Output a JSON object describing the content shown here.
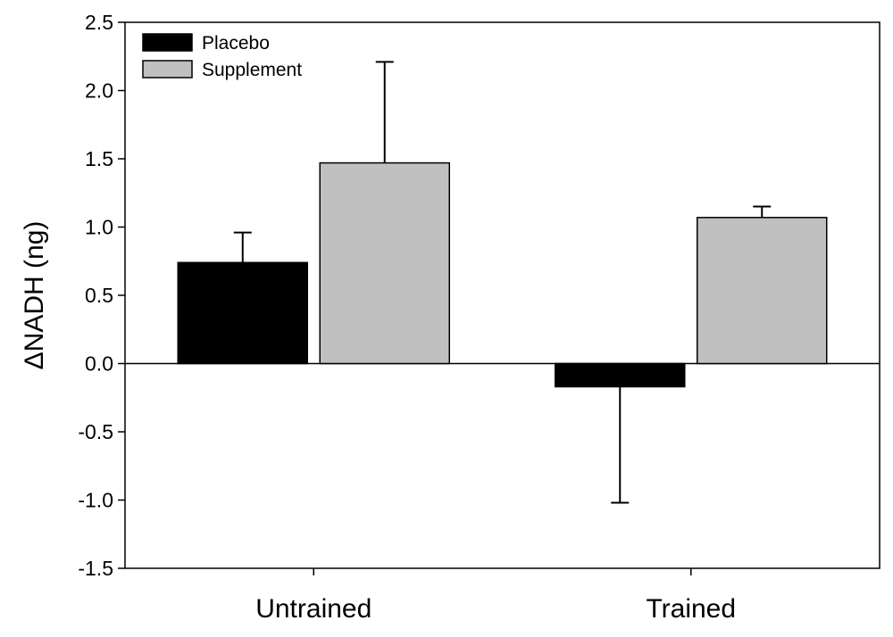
{
  "chart_data": {
    "type": "bar",
    "title": "",
    "xlabel": "",
    "ylabel": "ΔNADH (ng)",
    "categories": [
      "Untrained",
      "Trained"
    ],
    "series": [
      {
        "name": "Placebo",
        "color": "#000000",
        "values": [
          0.74,
          -0.17
        ],
        "error": [
          0.22,
          0.85
        ],
        "error_direction": [
          "up",
          "down"
        ]
      },
      {
        "name": "Supplement",
        "color": "#c0c0c0",
        "values": [
          1.47,
          1.07
        ],
        "error": [
          0.74,
          0.08
        ],
        "error_direction": [
          "up",
          "up"
        ]
      }
    ],
    "ylim": [
      -1.5,
      2.5
    ],
    "yticks": [
      -1.5,
      -1.0,
      -0.5,
      0.0,
      0.5,
      1.0,
      1.5,
      2.0,
      2.5
    ],
    "ytick_labels": [
      "-1.5",
      "-1.0",
      "-0.5",
      "0.0",
      "0.5",
      "1.0",
      "1.5",
      "2.0",
      "2.5"
    ],
    "grid": false,
    "legend_position": "top-left",
    "zero_line": true
  }
}
